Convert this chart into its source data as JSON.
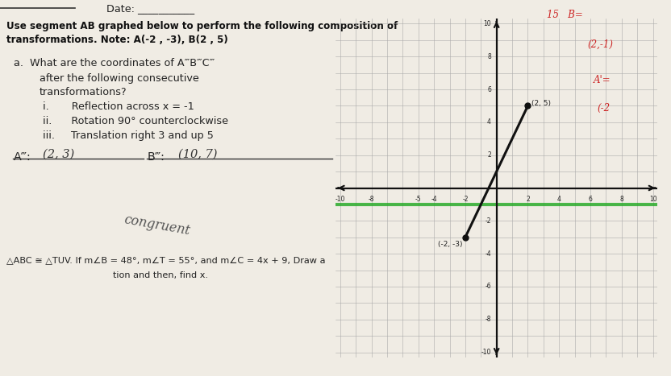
{
  "background_color": "#f0ece4",
  "grid_xlim": [
    -10,
    10
  ],
  "grid_ylim": [
    -10,
    10
  ],
  "segment_A": [
    -2,
    -3
  ],
  "segment_B": [
    2,
    5
  ],
  "point_A_label": "(-2, -3)",
  "point_B_label": "(2, 5)",
  "green_line_y": -1,
  "green_line_color": "#22aa22",
  "segment_color": "#111111",
  "axis_color": "#111111",
  "grid_color": "#aaaaaa"
}
